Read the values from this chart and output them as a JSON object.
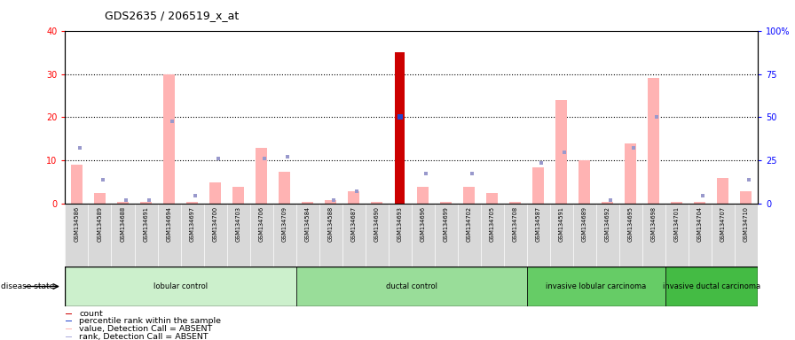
{
  "title": "GDS2635 / 206519_x_at",
  "samples": [
    "GSM134586",
    "GSM134589",
    "GSM134688",
    "GSM134691",
    "GSM134694",
    "GSM134697",
    "GSM134700",
    "GSM134703",
    "GSM134706",
    "GSM134709",
    "GSM134584",
    "GSM134588",
    "GSM134687",
    "GSM134690",
    "GSM134693",
    "GSM134696",
    "GSM134699",
    "GSM134702",
    "GSM134705",
    "GSM134708",
    "GSM134587",
    "GSM134591",
    "GSM134689",
    "GSM134692",
    "GSM134695",
    "GSM134698",
    "GSM134701",
    "GSM134704",
    "GSM134707",
    "GSM134710"
  ],
  "pink_bars": [
    9.0,
    2.5,
    0.4,
    0.4,
    30.0,
    0.5,
    5.0,
    4.0,
    13.0,
    7.5,
    0.4,
    1.0,
    3.0,
    0.5,
    0.0,
    4.0,
    0.4,
    4.0,
    2.5,
    0.4,
    8.5,
    24.0,
    10.0,
    0.4,
    14.0,
    29.0,
    0.4,
    0.4,
    6.0,
    3.0
  ],
  "blue_sq": [
    13.0,
    5.5,
    0.8,
    0.8,
    19.0,
    2.0,
    10.5,
    0.0,
    10.5,
    11.0,
    0.0,
    1.0,
    3.0,
    0.0,
    20.0,
    7.0,
    0.0,
    7.0,
    0.0,
    0.0,
    9.5,
    12.0,
    0.0,
    1.0,
    13.0,
    20.0,
    0.0,
    2.0,
    0.0,
    5.5
  ],
  "red_bar_idx": 14,
  "red_bar_val": 35.0,
  "blue_dot_idx": 14,
  "blue_dot_val": 20.0,
  "groups": [
    {
      "label": "lobular control",
      "start": 0,
      "end": 10,
      "color": "#ccf0cc"
    },
    {
      "label": "ductal control",
      "start": 10,
      "end": 20,
      "color": "#99dd99"
    },
    {
      "label": "invasive lobular carcinoma",
      "start": 20,
      "end": 26,
      "color": "#66cc66"
    },
    {
      "label": "invasive ductal carcinoma",
      "start": 26,
      "end": 30,
      "color": "#44bb44"
    }
  ],
  "ylim_left": [
    0,
    40
  ],
  "ylim_right": [
    0,
    100
  ],
  "yticks_left": [
    0,
    10,
    20,
    30,
    40
  ],
  "yticks_right": [
    0,
    25,
    50,
    75,
    100
  ],
  "ytick_labels_right": [
    "0",
    "25",
    "50",
    "75",
    "100%"
  ],
  "disease_state_label": "disease state",
  "legend": [
    {
      "color": "#cc0000",
      "label": "count"
    },
    {
      "color": "#2244cc",
      "label": "percentile rank within the sample"
    },
    {
      "color": "#ffb3b3",
      "label": "value, Detection Call = ABSENT"
    },
    {
      "color": "#aaaadd",
      "label": "rank, Detection Call = ABSENT"
    }
  ]
}
